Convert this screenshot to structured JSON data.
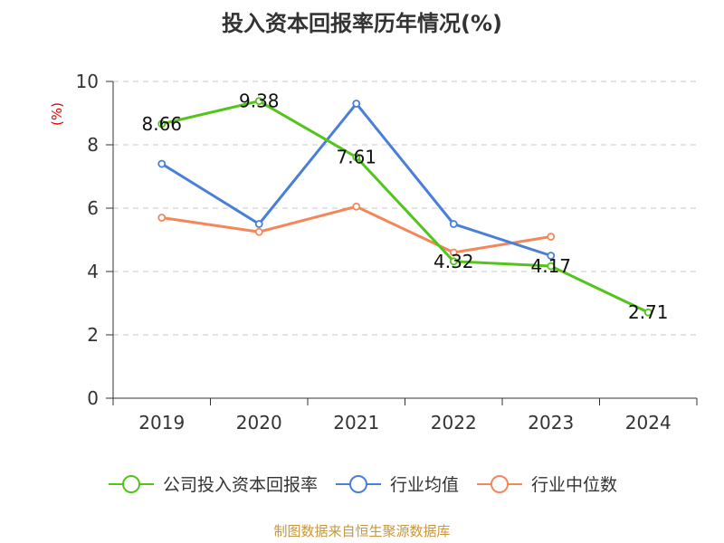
{
  "chart_data": {
    "type": "line",
    "title": "投入资本回报率历年情况(%)",
    "ylabel": "(%)",
    "xlabel": "",
    "categories": [
      "2019",
      "2020",
      "2021",
      "2022",
      "2023",
      "2024"
    ],
    "ylim": [
      0,
      10
    ],
    "yticks": [
      "0",
      "2",
      "4",
      "6",
      "8",
      "10"
    ],
    "grid": true,
    "legend_position": "bottom",
    "series": [
      {
        "name": "公司投入资本回报率",
        "color": "#52c41a",
        "values": [
          8.66,
          9.38,
          7.61,
          4.32,
          4.17,
          2.71
        ],
        "labels": [
          "8.66",
          "9.38",
          "7.61",
          "4.32",
          "4.17",
          "2.71"
        ]
      },
      {
        "name": "行业均值",
        "color": "#4a7fd9",
        "values": [
          7.4,
          5.5,
          9.3,
          5.5,
          4.5,
          null
        ]
      },
      {
        "name": "行业中位数",
        "color": "#f4875a",
        "values": [
          5.7,
          5.25,
          6.05,
          4.6,
          5.1,
          null
        ]
      }
    ],
    "source": "制图数据来自恒生聚源数据库"
  }
}
